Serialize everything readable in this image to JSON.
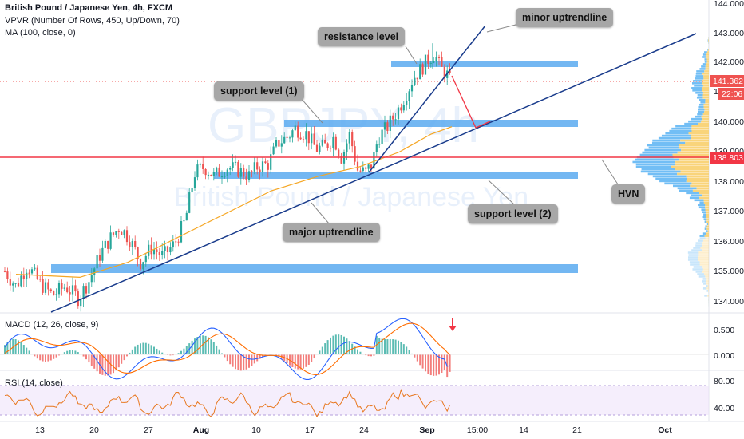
{
  "header": {
    "symbol": "British Pound / Japanese Yen, 4h, FXCM",
    "vpvr": "VPVR (Number Of Rows, 450, Up/Down, 70)",
    "ma": "MA (100, close, 0)"
  },
  "watermark": {
    "ticker": "GBPJPY, 4h",
    "name": "British Pound / Japanese Yen"
  },
  "annotations": {
    "resistance": "resistance level",
    "minor_uptrend": "minor uptrendline",
    "support1": "support level (1)",
    "support2": "support level (2)",
    "major_uptrend": "major uptrendline",
    "hvn": "HVN"
  },
  "price_tags": {
    "last_price": "141.362",
    "countdown": "22:06",
    "hline": "138.803"
  },
  "colors": {
    "bull": "#26a69a",
    "bear": "#ef5350",
    "zone": "#5aaaf0",
    "trendline": "#1a3c8c",
    "ma": "#f5a623",
    "hline": "#f23645",
    "macd": "#2962ff",
    "signal": "#ff6d00",
    "rsi": "#e8771e",
    "rsi_band": "#ede0fa",
    "vp_up": "#63b7f4",
    "vp_down": "#f8cf6d"
  },
  "chart_data": [
    {
      "type": "candlestick",
      "title": "British Pound / Japanese Yen, 4h, FXCM",
      "x": [
        "13",
        "20",
        "27",
        "Aug",
        "10",
        "17",
        "24",
        "Sep",
        "15:00",
        "14",
        "21",
        "Oct"
      ],
      "ylim": [
        133.7,
        144.1
      ],
      "yticks": [
        "144.000",
        "143.000",
        "142.000",
        "141.000",
        "140.000",
        "139.000",
        "138.000",
        "137.000",
        "136.000",
        "135.000",
        "134.000"
      ],
      "key_points": [
        {
          "x": "13",
          "close": 135.0
        },
        {
          "x": "20",
          "close": 134.7
        },
        {
          "x": "27",
          "close": 135.8
        },
        {
          "x": "27",
          "close": 136.6
        },
        {
          "x": "Aug",
          "close": 138.4
        },
        {
          "x": "10",
          "close": 138.5
        },
        {
          "x": "17",
          "close": 139.9
        },
        {
          "x": "24",
          "close": 138.3
        },
        {
          "x": "24",
          "close": 139.9
        },
        {
          "x": "Sep",
          "close": 142.2
        },
        {
          "x": "Sep",
          "close": 141.4
        }
      ],
      "zones": [
        {
          "name": "resistance level",
          "low": 141.9,
          "high": 142.08
        },
        {
          "name": "support level (1)",
          "low": 139.9,
          "high": 140.12
        },
        {
          "name": "support level (2)",
          "low": 138.12,
          "high": 138.35
        },
        {
          "name": "",
          "low": 135.0,
          "high": 135.25
        }
      ],
      "horizontal_line": 138.803,
      "last_price": 141.362,
      "moving_average": {
        "name": "MA (100, close, 0)"
      },
      "trendlines": [
        "major uptrendline",
        "minor uptrendline"
      ]
    },
    {
      "type": "line",
      "title": "MACD (12, 26, close, 9)",
      "yticks": [
        "0.500",
        "0.000"
      ],
      "series": [
        {
          "name": "MACD"
        },
        {
          "name": "Signal"
        },
        {
          "name": "Histogram"
        }
      ]
    },
    {
      "type": "line",
      "title": "RSI (14, close)",
      "yticks": [
        "80.00",
        "40.00"
      ],
      "series": [
        {
          "name": "RSI"
        }
      ]
    }
  ]
}
